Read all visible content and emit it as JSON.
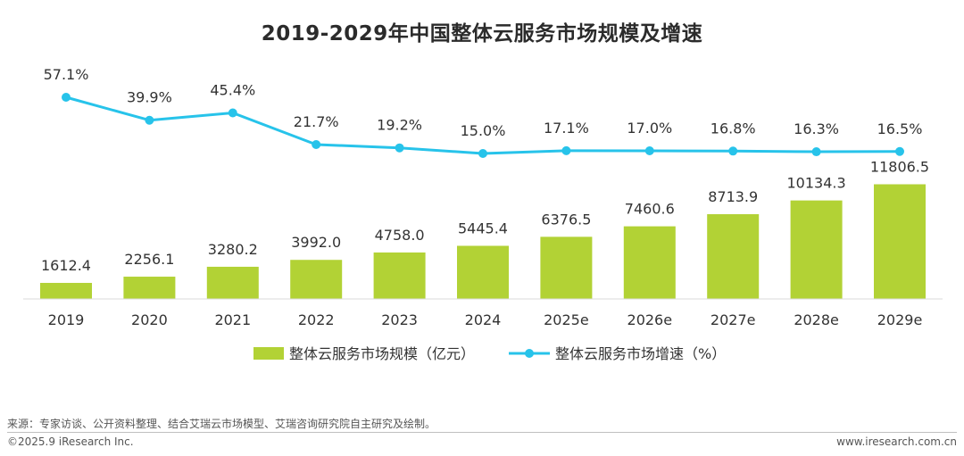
{
  "chart_data": {
    "type": "bar+line",
    "title": "2019-2029年中国整体云服务市场规模及增速",
    "categories": [
      "2019",
      "2020",
      "2021",
      "2022",
      "2023",
      "2024",
      "2025e",
      "2026e",
      "2027e",
      "2028e",
      "2029e"
    ],
    "series": [
      {
        "name": "整体云服务市场规模（亿元）",
        "type": "bar",
        "color": "#b2d235",
        "values": [
          1612.4,
          2256.1,
          3280.2,
          3992.0,
          4758.0,
          5445.4,
          6376.5,
          7460.6,
          8713.9,
          10134.3,
          11806.5
        ],
        "labels": [
          "1612.4",
          "2256.1",
          "3280.2",
          "3992.0",
          "4758.0",
          "5445.4",
          "6376.5",
          "7460.6",
          "8713.9",
          "10134.3",
          "11806.5"
        ]
      },
      {
        "name": "整体云服务市场增速（%）",
        "type": "line",
        "color": "#27c3ea",
        "values": [
          57.1,
          39.9,
          45.4,
          21.7,
          19.2,
          15.0,
          17.1,
          17.0,
          16.8,
          16.3,
          16.5
        ],
        "labels": [
          "57.1%",
          "39.9%",
          "45.4%",
          "21.7%",
          "19.2%",
          "15.0%",
          "17.1%",
          "17.0%",
          "16.8%",
          "16.3%",
          "16.5%"
        ]
      }
    ],
    "legend_position": "bottom-center",
    "grid": false
  },
  "footer": {
    "source": "来源：专家访谈、公开资料整理、结合艾瑞云市场模型、艾瑞咨询研究院自主研究及绘制。",
    "copyright": "©2025.9 iResearch Inc.",
    "website": "www.iresearch.com.cn"
  }
}
